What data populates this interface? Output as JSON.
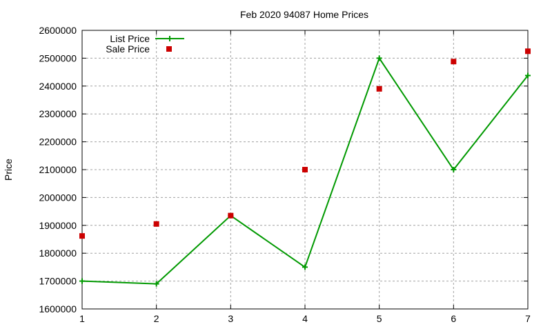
{
  "chart_data": {
    "type": "line",
    "title": "Feb 2020 94087 Home Prices",
    "xlabel": "",
    "ylabel": "Price",
    "x": [
      1,
      2,
      3,
      4,
      5,
      6,
      7
    ],
    "xlim": [
      1,
      7
    ],
    "ylim": [
      1600000,
      2600000
    ],
    "xticks": [
      "1",
      "2",
      "3",
      "4",
      "5",
      "6",
      "7"
    ],
    "yticks": [
      "1600000",
      "1700000",
      "1800000",
      "1900000",
      "2000000",
      "2100000",
      "2200000",
      "2300000",
      "2400000",
      "2500000",
      "2600000"
    ],
    "grid": true,
    "legend_position": "top-left",
    "series": [
      {
        "name": "List Price",
        "style": "linespoints",
        "marker": "plus",
        "color": "#009900",
        "values": [
          1700000,
          1690000,
          1935000,
          1750000,
          2500000,
          2100000,
          2438000
        ]
      },
      {
        "name": "Sale Price",
        "style": "points",
        "marker": "square",
        "color": "#cc0000",
        "values": [
          1862000,
          1905000,
          1935000,
          2100000,
          2390000,
          2488000,
          2525000
        ]
      }
    ]
  }
}
